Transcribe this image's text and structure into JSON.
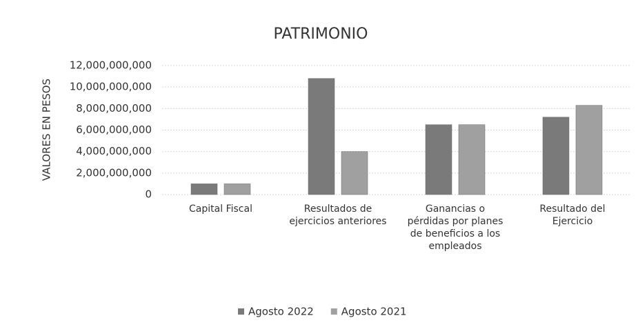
{
  "chart_data": {
    "type": "bar",
    "title": "PATRIMONIO",
    "y_label": "VALORES EN PESOS",
    "categories": [
      "Capital Fiscal",
      "Resultados de ejercicios anteriores",
      "Ganancias o pérdidas por planes de beneficios a los empleados",
      "Resultado del Ejercicio"
    ],
    "series": [
      {
        "name": "Agosto 2022",
        "color": "#7a7a7a",
        "values": [
          1000000000,
          10800000000,
          6500000000,
          7200000000
        ]
      },
      {
        "name": "Agosto 2021",
        "color": "#a0a0a0",
        "values": [
          1000000000,
          4000000000,
          6500000000,
          8300000000
        ]
      }
    ],
    "ylim": [
      0,
      12000000000
    ],
    "yticks": [
      0,
      {
        "value": 2000000000,
        "label": "2,000,000,000"
      },
      {
        "value": 4000000000,
        "label": "4,000,000,000"
      },
      {
        "value": 6000000000,
        "label": "6,000,000,000"
      },
      {
        "value": 8000000000,
        "label": "8,000,000,000"
      },
      {
        "value": 10000000000,
        "label": "10,000,000,000"
      },
      {
        "value": 12000000000,
        "label": "12,000,000,000"
      }
    ],
    "grid": true,
    "legend": "bottom"
  }
}
